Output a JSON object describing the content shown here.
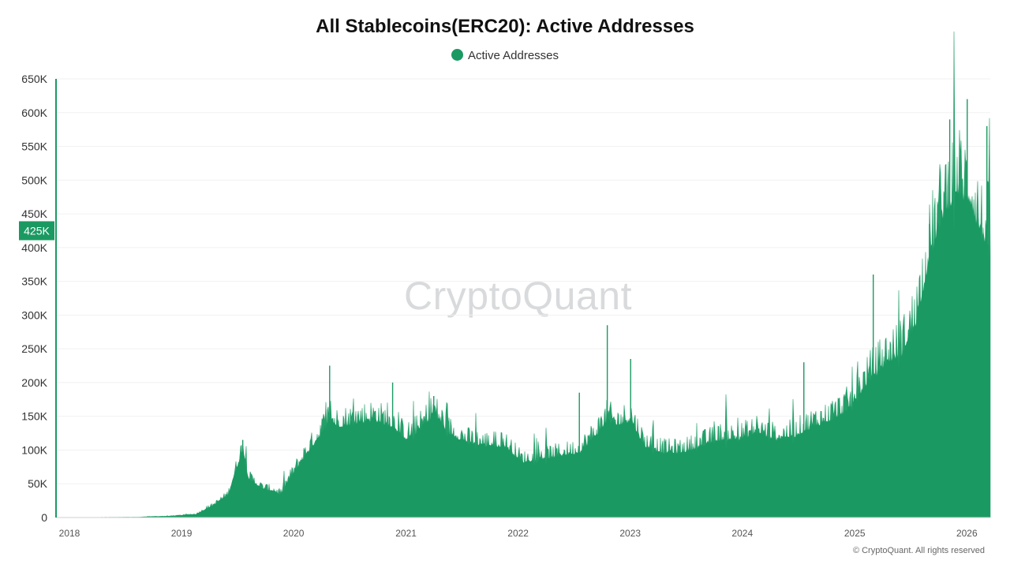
{
  "chart_data": {
    "type": "area",
    "title": "All Stablecoins(ERC20): Active Addresses",
    "legend": {
      "position": "top-center",
      "entries": [
        "Active Addresses"
      ]
    },
    "series": [
      {
        "name": "Active Addresses",
        "color": "#1a9a62"
      }
    ],
    "x_axis": {
      "type": "date",
      "range": [
        "2018-01-01",
        "2026-05-01"
      ],
      "tick_labels": [
        "2018",
        "2019",
        "2020",
        "2021",
        "2022",
        "2023",
        "2024",
        "2025",
        "2026"
      ]
    },
    "y_axis": {
      "range": [
        0,
        650000
      ],
      "ticks": [
        0,
        50000,
        100000,
        150000,
        200000,
        250000,
        300000,
        350000,
        400000,
        450000,
        500000,
        550000,
        600000,
        650000
      ],
      "tick_labels": [
        "0",
        "50K",
        "100K",
        "150K",
        "200K",
        "250K",
        "300K",
        "350K",
        "400K",
        "450K",
        "500K",
        "550K",
        "600K",
        "650K"
      ]
    },
    "grid": {
      "horizontal": true,
      "vertical": false
    },
    "current_value": 425000,
    "current_value_label": "425K",
    "points": [
      [
        "2018-01-01",
        0
      ],
      [
        "2018-10-01",
        500
      ],
      [
        "2018-11-01",
        1500
      ],
      [
        "2019-01-01",
        2000
      ],
      [
        "2019-04-01",
        5000
      ],
      [
        "2019-06-01",
        20000
      ],
      [
        "2019-07-15",
        35000
      ],
      [
        "2019-08-15",
        80000
      ],
      [
        "2019-09-01",
        105000
      ],
      [
        "2019-09-20",
        60000
      ],
      [
        "2019-11-01",
        45000
      ],
      [
        "2019-12-15",
        40000
      ],
      [
        "2020-01-01",
        35000
      ],
      [
        "2020-02-01",
        60000
      ],
      [
        "2020-03-15",
        90000
      ],
      [
        "2020-05-01",
        120000
      ],
      [
        "2020-06-10",
        150000
      ],
      [
        "2020-07-01",
        140000
      ],
      [
        "2020-09-01",
        145000
      ],
      [
        "2020-11-01",
        150000
      ],
      [
        "2021-01-01",
        140000
      ],
      [
        "2021-02-15",
        120000
      ],
      [
        "2021-04-01",
        135000
      ],
      [
        "2021-05-15",
        160000
      ],
      [
        "2021-07-01",
        130000
      ],
      [
        "2021-09-01",
        115000
      ],
      [
        "2021-11-01",
        110000
      ],
      [
        "2022-01-01",
        110000
      ],
      [
        "2022-03-01",
        85000
      ],
      [
        "2022-05-01",
        90000
      ],
      [
        "2022-07-01",
        95000
      ],
      [
        "2022-09-01",
        100000
      ],
      [
        "2022-11-01",
        130000
      ],
      [
        "2022-12-01",
        150000
      ],
      [
        "2023-01-01",
        140000
      ],
      [
        "2023-02-15",
        150000
      ],
      [
        "2023-04-01",
        110000
      ],
      [
        "2023-06-01",
        100000
      ],
      [
        "2023-08-01",
        100000
      ],
      [
        "2023-10-01",
        110000
      ],
      [
        "2023-12-01",
        120000
      ],
      [
        "2024-02-01",
        120000
      ],
      [
        "2024-04-01",
        130000
      ],
      [
        "2024-06-01",
        120000
      ],
      [
        "2024-08-01",
        125000
      ],
      [
        "2024-10-01",
        140000
      ],
      [
        "2024-12-01",
        150000
      ],
      [
        "2025-02-01",
        170000
      ],
      [
        "2025-04-01",
        210000
      ],
      [
        "2025-06-01",
        240000
      ],
      [
        "2025-07-15",
        250000
      ],
      [
        "2025-09-01",
        300000
      ],
      [
        "2025-10-15",
        400000
      ],
      [
        "2025-12-01",
        470000
      ],
      [
        "2026-01-15",
        500000
      ],
      [
        "2026-03-01",
        480000
      ],
      [
        "2026-04-01",
        430000
      ],
      [
        "2026-05-01",
        425000
      ]
    ],
    "spikes": [
      [
        "2019-09-01",
        115000
      ],
      [
        "2020-06-10",
        225000
      ],
      [
        "2021-01-01",
        200000
      ],
      [
        "2021-05-15",
        180000
      ],
      [
        "2022-09-01",
        185000
      ],
      [
        "2022-12-01",
        285000
      ],
      [
        "2023-02-15",
        235000
      ],
      [
        "2024-09-01",
        230000
      ],
      [
        "2025-04-15",
        360000
      ],
      [
        "2025-10-15",
        435000
      ],
      [
        "2025-12-20",
        590000
      ],
      [
        "2026-02-15",
        620000
      ],
      [
        "2026-04-20",
        580000
      ]
    ]
  }
}
